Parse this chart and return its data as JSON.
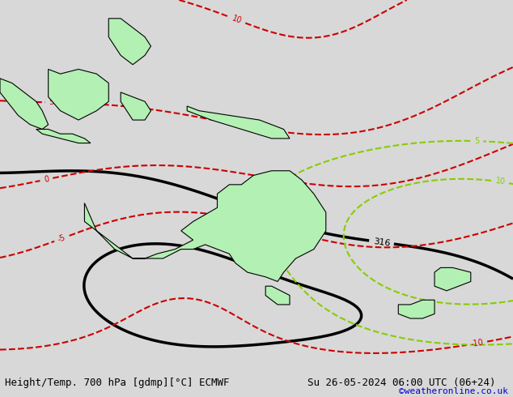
{
  "title_left": "Height/Temp. 700 hPa [gdmp][°C] ECMWF",
  "title_right": "Su 26-05-2024 06:00 UTC (06+24)",
  "copyright": "©weatheronline.co.uk",
  "background_color": "#d8d8d8",
  "land_color": "#b3f0b3",
  "ocean_color": "#e8e8e8",
  "contour_color_height": "#000000",
  "contour_color_temp": "#cc0000",
  "contour_color_anomaly_neg": "#ff8800",
  "contour_color_anomaly_pos": "#88cc00",
  "contour_color_magenta": "#cc00cc",
  "title_fontsize": 10,
  "copyright_color": "#0000cc",
  "copyright_fontsize": 8
}
